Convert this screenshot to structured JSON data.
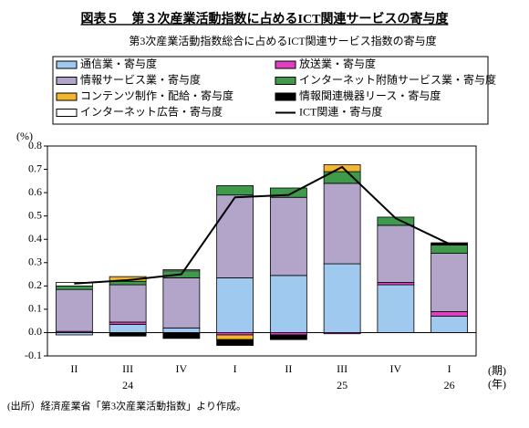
{
  "chart_data": {
    "type": "bar",
    "title": "図表５　第３次産業活動指数に占めるICT関連サービスの寄与度",
    "subtitle": "第3次産業活動指数総合に占めるICT関連サービス指数の寄与度",
    "y_unit": "(%)",
    "period_unit": "(期)",
    "year_unit": "(年)",
    "source": "(出所）経済産業省「第3次産業活動指数」より作成。",
    "categories": [
      "II",
      "III",
      "IV",
      "I",
      "II",
      "III",
      "IV",
      "I"
    ],
    "years": [
      null,
      "24",
      null,
      null,
      null,
      "25",
      null,
      "26"
    ],
    "series": [
      {
        "name": "通信業・寄与度",
        "color": "#9fc9ef",
        "values": [
          -0.01,
          0.035,
          0.02,
          0.235,
          0.245,
          0.295,
          0.205,
          0.07
        ]
      },
      {
        "name": "放送業・寄与度",
        "color": "#e040c0",
        "values": [
          0.005,
          0.01,
          0.0,
          -0.01,
          -0.01,
          -0.005,
          0.01,
          0.02
        ]
      },
      {
        "name": "情報サービス業・寄与度",
        "color": "#b3a5c9",
        "values": [
          0.18,
          0.16,
          0.215,
          0.355,
          0.335,
          0.345,
          0.245,
          0.25
        ]
      },
      {
        "name": "インターネット附随サービス業・寄与度",
        "color": "#3f9a4c",
        "values": [
          0.015,
          0.015,
          0.03,
          0.04,
          0.04,
          0.05,
          0.035,
          0.035
        ]
      },
      {
        "name": "コンテンツ制作・配給・寄与度",
        "color": "#f2b630",
        "values": [
          0.0,
          0.02,
          0.0,
          -0.02,
          0.0,
          0.03,
          0.0,
          0.0
        ]
      },
      {
        "name": "情報関連機器リース・寄与度",
        "color": "#000000",
        "values": [
          0.0,
          -0.015,
          -0.025,
          -0.025,
          -0.02,
          0.0,
          0.0,
          0.01
        ]
      },
      {
        "name": "インターネット広告・寄与度",
        "color": "#ffffff",
        "values": [
          0.015,
          0.0,
          0.005,
          0.0,
          0.0,
          0.0,
          0.0,
          0.0
        ]
      }
    ],
    "line": {
      "name": "ICT関連・寄与度",
      "color": "#000000",
      "values": [
        0.21,
        0.225,
        0.25,
        0.58,
        0.59,
        0.71,
        0.49,
        0.38
      ]
    },
    "ylim": [
      -0.1,
      0.8
    ],
    "yticks": [
      0.8,
      0.7,
      0.6,
      0.5,
      0.4,
      0.3,
      0.2,
      0.1,
      {
        "value": 0,
        "label": "0.0"
      },
      -0.1
    ]
  }
}
